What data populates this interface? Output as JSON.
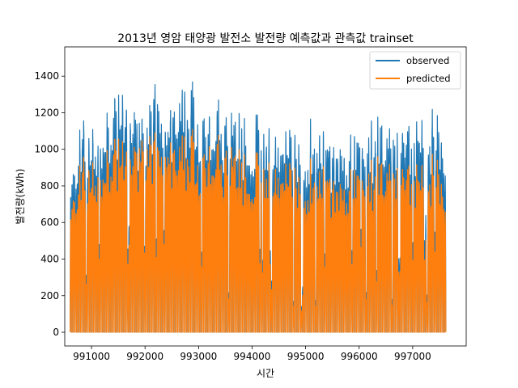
{
  "chart_data": {
    "type": "line",
    "title": "2013년 영암 태양광 발전소 발전량 예측값과 관측값 trainset",
    "xlabel": "시간",
    "ylabel": "발전량(kWh)",
    "xlim": [
      990500,
      998000
    ],
    "ylim": [
      -75,
      1560
    ],
    "xticks": [
      991000,
      992000,
      993000,
      994000,
      995000,
      996000,
      997000
    ],
    "yticks": [
      0,
      200,
      400,
      600,
      800,
      1000,
      1200,
      1400
    ],
    "x_range": [
      990600,
      997620
    ],
    "legend": {
      "position": "top-right"
    },
    "series": [
      {
        "name": "observed",
        "color": "#1f77b4",
        "x": [
          990600,
          990800,
          991000,
          991200,
          991400,
          991600,
          991800,
          992000,
          992200,
          992400,
          992600,
          992800,
          993000,
          993200,
          993400,
          993600,
          993800,
          994000,
          994200,
          994400,
          994600,
          994800,
          995000,
          995200,
          995400,
          995600,
          995800,
          996000,
          996200,
          996400,
          996600,
          996800,
          997000,
          997200,
          997400,
          997620
        ],
        "daily_peak": [
          860,
          1310,
          1240,
          1210,
          1300,
          1420,
          1390,
          1290,
          1480,
          1300,
          1460,
          1410,
          1420,
          1300,
          1360,
          1280,
          1260,
          1210,
          1240,
          1150,
          1240,
          1200,
          1180,
          1230,
          1180,
          1140,
          1140,
          1210,
          1180,
          1200,
          1260,
          1220,
          1220,
          1350,
          1270,
          1120
        ]
      },
      {
        "name": "predicted",
        "color": "#ff7f0e",
        "x": [
          990600,
          990800,
          991000,
          991200,
          991400,
          991600,
          991800,
          992000,
          992200,
          992400,
          992600,
          992800,
          993000,
          993200,
          993400,
          993600,
          993800,
          994000,
          994200,
          994400,
          994600,
          994800,
          995000,
          995200,
          995400,
          995600,
          995800,
          996000,
          996200,
          996400,
          996600,
          996800,
          997000,
          997200,
          997400,
          997620
        ],
        "daily_peak": [
          720,
          1080,
          1040,
          1000,
          1080,
          1140,
          1170,
          1190,
          1180,
          1150,
          1180,
          1150,
          1140,
          1120,
          1150,
          1080,
          1050,
          1000,
          1020,
          960,
          1040,
          1000,
          960,
          1000,
          980,
          920,
          940,
          1000,
          960,
          980,
          1040,
          1000,
          980,
          1060,
          1020,
          860
        ]
      }
    ]
  }
}
